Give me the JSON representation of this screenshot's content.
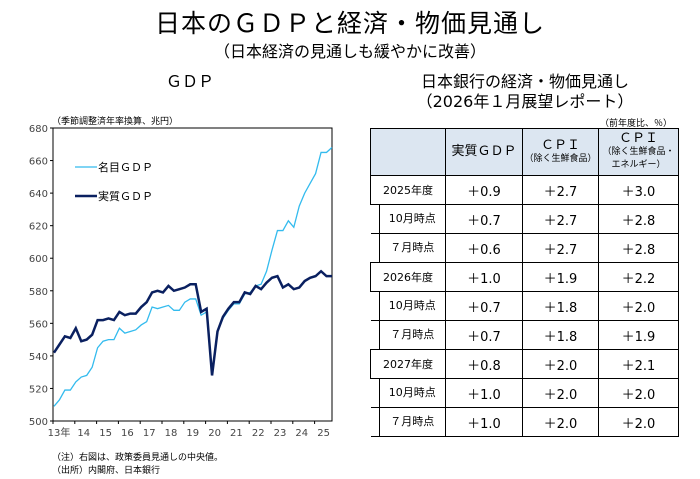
{
  "title": "日本のＧＤＰと経済・物価見通し",
  "subtitle": "（日本経済の見通しも緩やかに改善）",
  "left": {
    "heading": "ＧＤＰ",
    "unit": "（季節調整済年率換算、兆円）"
  },
  "right": {
    "heading1": "日本銀行の経済・物価見通し",
    "heading2": "（2026年１月展望レポート）",
    "unit": "（前年度比、％）",
    "columns": [
      {
        "main": "実質ＧＤＰ",
        "sub": ""
      },
      {
        "main": "ＣＰＩ",
        "sub": "（除く生鮮食品）"
      },
      {
        "main": "ＣＰＩ",
        "sub": "（除く生鮮食品・エネルギー）"
      }
    ],
    "rows": [
      {
        "label": "2025年度",
        "sub": false,
        "values": [
          "＋0.9",
          "＋2.7",
          "＋3.0"
        ]
      },
      {
        "label": "10月時点",
        "sub": true,
        "values": [
          "＋0.7",
          "＋2.7",
          "＋2.8"
        ]
      },
      {
        "label": "７月時点",
        "sub": true,
        "values": [
          "＋0.6",
          "＋2.7",
          "＋2.8"
        ]
      },
      {
        "label": "2026年度",
        "sub": false,
        "values": [
          "＋1.0",
          "＋1.9",
          "＋2.2"
        ]
      },
      {
        "label": "10月時点",
        "sub": true,
        "values": [
          "＋0.7",
          "＋1.8",
          "＋2.0"
        ]
      },
      {
        "label": "７月時点",
        "sub": true,
        "values": [
          "＋0.7",
          "＋1.8",
          "＋1.9"
        ]
      },
      {
        "label": "2027年度",
        "sub": false,
        "values": [
          "＋0.8",
          "＋2.0",
          "＋2.1"
        ]
      },
      {
        "label": "10月時点",
        "sub": true,
        "values": [
          "＋1.0",
          "＋2.0",
          "＋2.0"
        ]
      },
      {
        "label": "７月時点",
        "sub": true,
        "values": [
          "＋1.0",
          "＋2.0",
          "＋2.0"
        ]
      }
    ]
  },
  "notes": [
    "（注）右図は、政策委員見通しの中央値。",
    "（出所）内閣府、日本銀行"
  ],
  "chart_data": {
    "type": "line",
    "x_start": "2013Q1",
    "frequency": "quarterly",
    "x_tick_labels": [
      "13年",
      "14",
      "15",
      "16",
      "17",
      "18",
      "19",
      "20",
      "21",
      "22",
      "23",
      "24",
      "25"
    ],
    "ylim": [
      500,
      680
    ],
    "y_ticks": [
      500,
      520,
      540,
      560,
      580,
      600,
      620,
      640,
      660,
      680
    ],
    "ylabel": "（季節調整済年率換算、兆円）",
    "legend": "top-left",
    "grid": false,
    "series": [
      {
        "name": "名目ＧＤＰ",
        "color": "#33bbee",
        "values": [
          509,
          513,
          519,
          519,
          524,
          527,
          528,
          533,
          545,
          549,
          550,
          550,
          557,
          554,
          555,
          556,
          559,
          561,
          570,
          569,
          570,
          571,
          568,
          568,
          573,
          575,
          575,
          565,
          567,
          529,
          555,
          563,
          568,
          572,
          572,
          578,
          579,
          583,
          584,
          592,
          605,
          617,
          617,
          623,
          619,
          632,
          640,
          646,
          652,
          665,
          665,
          668
        ]
      },
      {
        "name": "実質ＧＤＰ",
        "color": "#0a2060",
        "values": [
          542,
          547,
          552,
          551,
          557,
          549,
          550,
          553,
          562,
          562,
          563,
          562,
          567,
          565,
          566,
          566,
          570,
          573,
          579,
          580,
          579,
          583,
          580,
          581,
          582,
          584,
          584,
          567,
          569,
          528,
          555,
          564,
          569,
          573,
          573,
          579,
          578,
          583,
          581,
          585,
          588,
          589,
          582,
          584,
          581,
          582,
          586,
          588,
          589,
          592,
          589,
          589
        ]
      }
    ]
  }
}
